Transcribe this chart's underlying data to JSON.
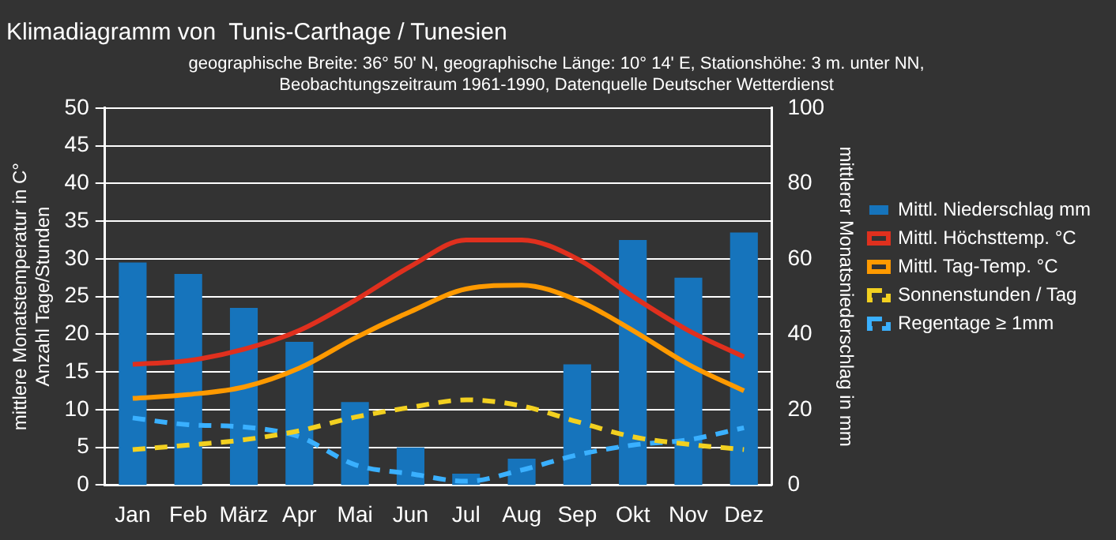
{
  "chart_data": {
    "type": "line",
    "title": "Klimadiagramm von  Tunis-Carthage / Tunesien",
    "subtitle": "geographische Breite: 36° 50' N, geographische Länge: 10° 14' E, Stationshöhe: 3 m. unter NN,\nBeobachtungszeitraum 1961-1990, Datenquelle Deutscher Wetterdienst",
    "ylabel": "mittlere Monatstemperatur in C°\nAnzahl Tage/Stunden",
    "y2label": "mittlerer Monatsniederschlag in mm",
    "categories": [
      "Jan",
      "Feb",
      "März",
      "Apr",
      "Mai",
      "Jun",
      "Jul",
      "Aug",
      "Sep",
      "Okt",
      "Nov",
      "Dez"
    ],
    "series": [
      {
        "name": "Mittl. Niederschlag mm",
        "type": "bar",
        "axis": "y2",
        "color": "#1674bc",
        "values": [
          59,
          56,
          47,
          38,
          22,
          10,
          3,
          7,
          32,
          65,
          55,
          67
        ]
      },
      {
        "name": "Mittl. Höchsttemp. °C",
        "color": "#e0301e",
        "line_style": "solid",
        "values": [
          16,
          16.5,
          18,
          20.5,
          24.5,
          29,
          32.5,
          32.5,
          30,
          25,
          20.5,
          17
        ]
      },
      {
        "name": "Mittl. Tag-Temp. °C",
        "color": "#ff9a00",
        "line_style": "solid",
        "values": [
          11.5,
          12,
          13,
          15.5,
          19.5,
          23,
          26,
          26.5,
          24.5,
          20.5,
          16,
          12.5
        ]
      },
      {
        "name": "Sonnenstunden / Tag",
        "color": "#f2d020",
        "line_style": "dashed",
        "values": [
          4.7,
          5.3,
          6,
          7.2,
          9,
          10.3,
          11.3,
          10.5,
          8.4,
          6.4,
          5.4,
          4.7
        ]
      },
      {
        "name": "Regentage ≥ 1mm",
        "color": "#3ab0ff",
        "line_style": "dashed",
        "values": [
          8.9,
          8,
          7.7,
          6.4,
          2.7,
          1.5,
          0.5,
          2,
          4,
          5.3,
          6,
          7.6
        ]
      }
    ],
    "ylim": [
      0,
      50
    ],
    "yticks": [
      0,
      5,
      10,
      15,
      20,
      25,
      30,
      35,
      40,
      45,
      50
    ],
    "y2lim": [
      0,
      100
    ],
    "y2ticks": [
      0,
      20,
      40,
      60,
      80,
      100
    ],
    "grid": "y",
    "legend": "right",
    "marker": "none"
  }
}
